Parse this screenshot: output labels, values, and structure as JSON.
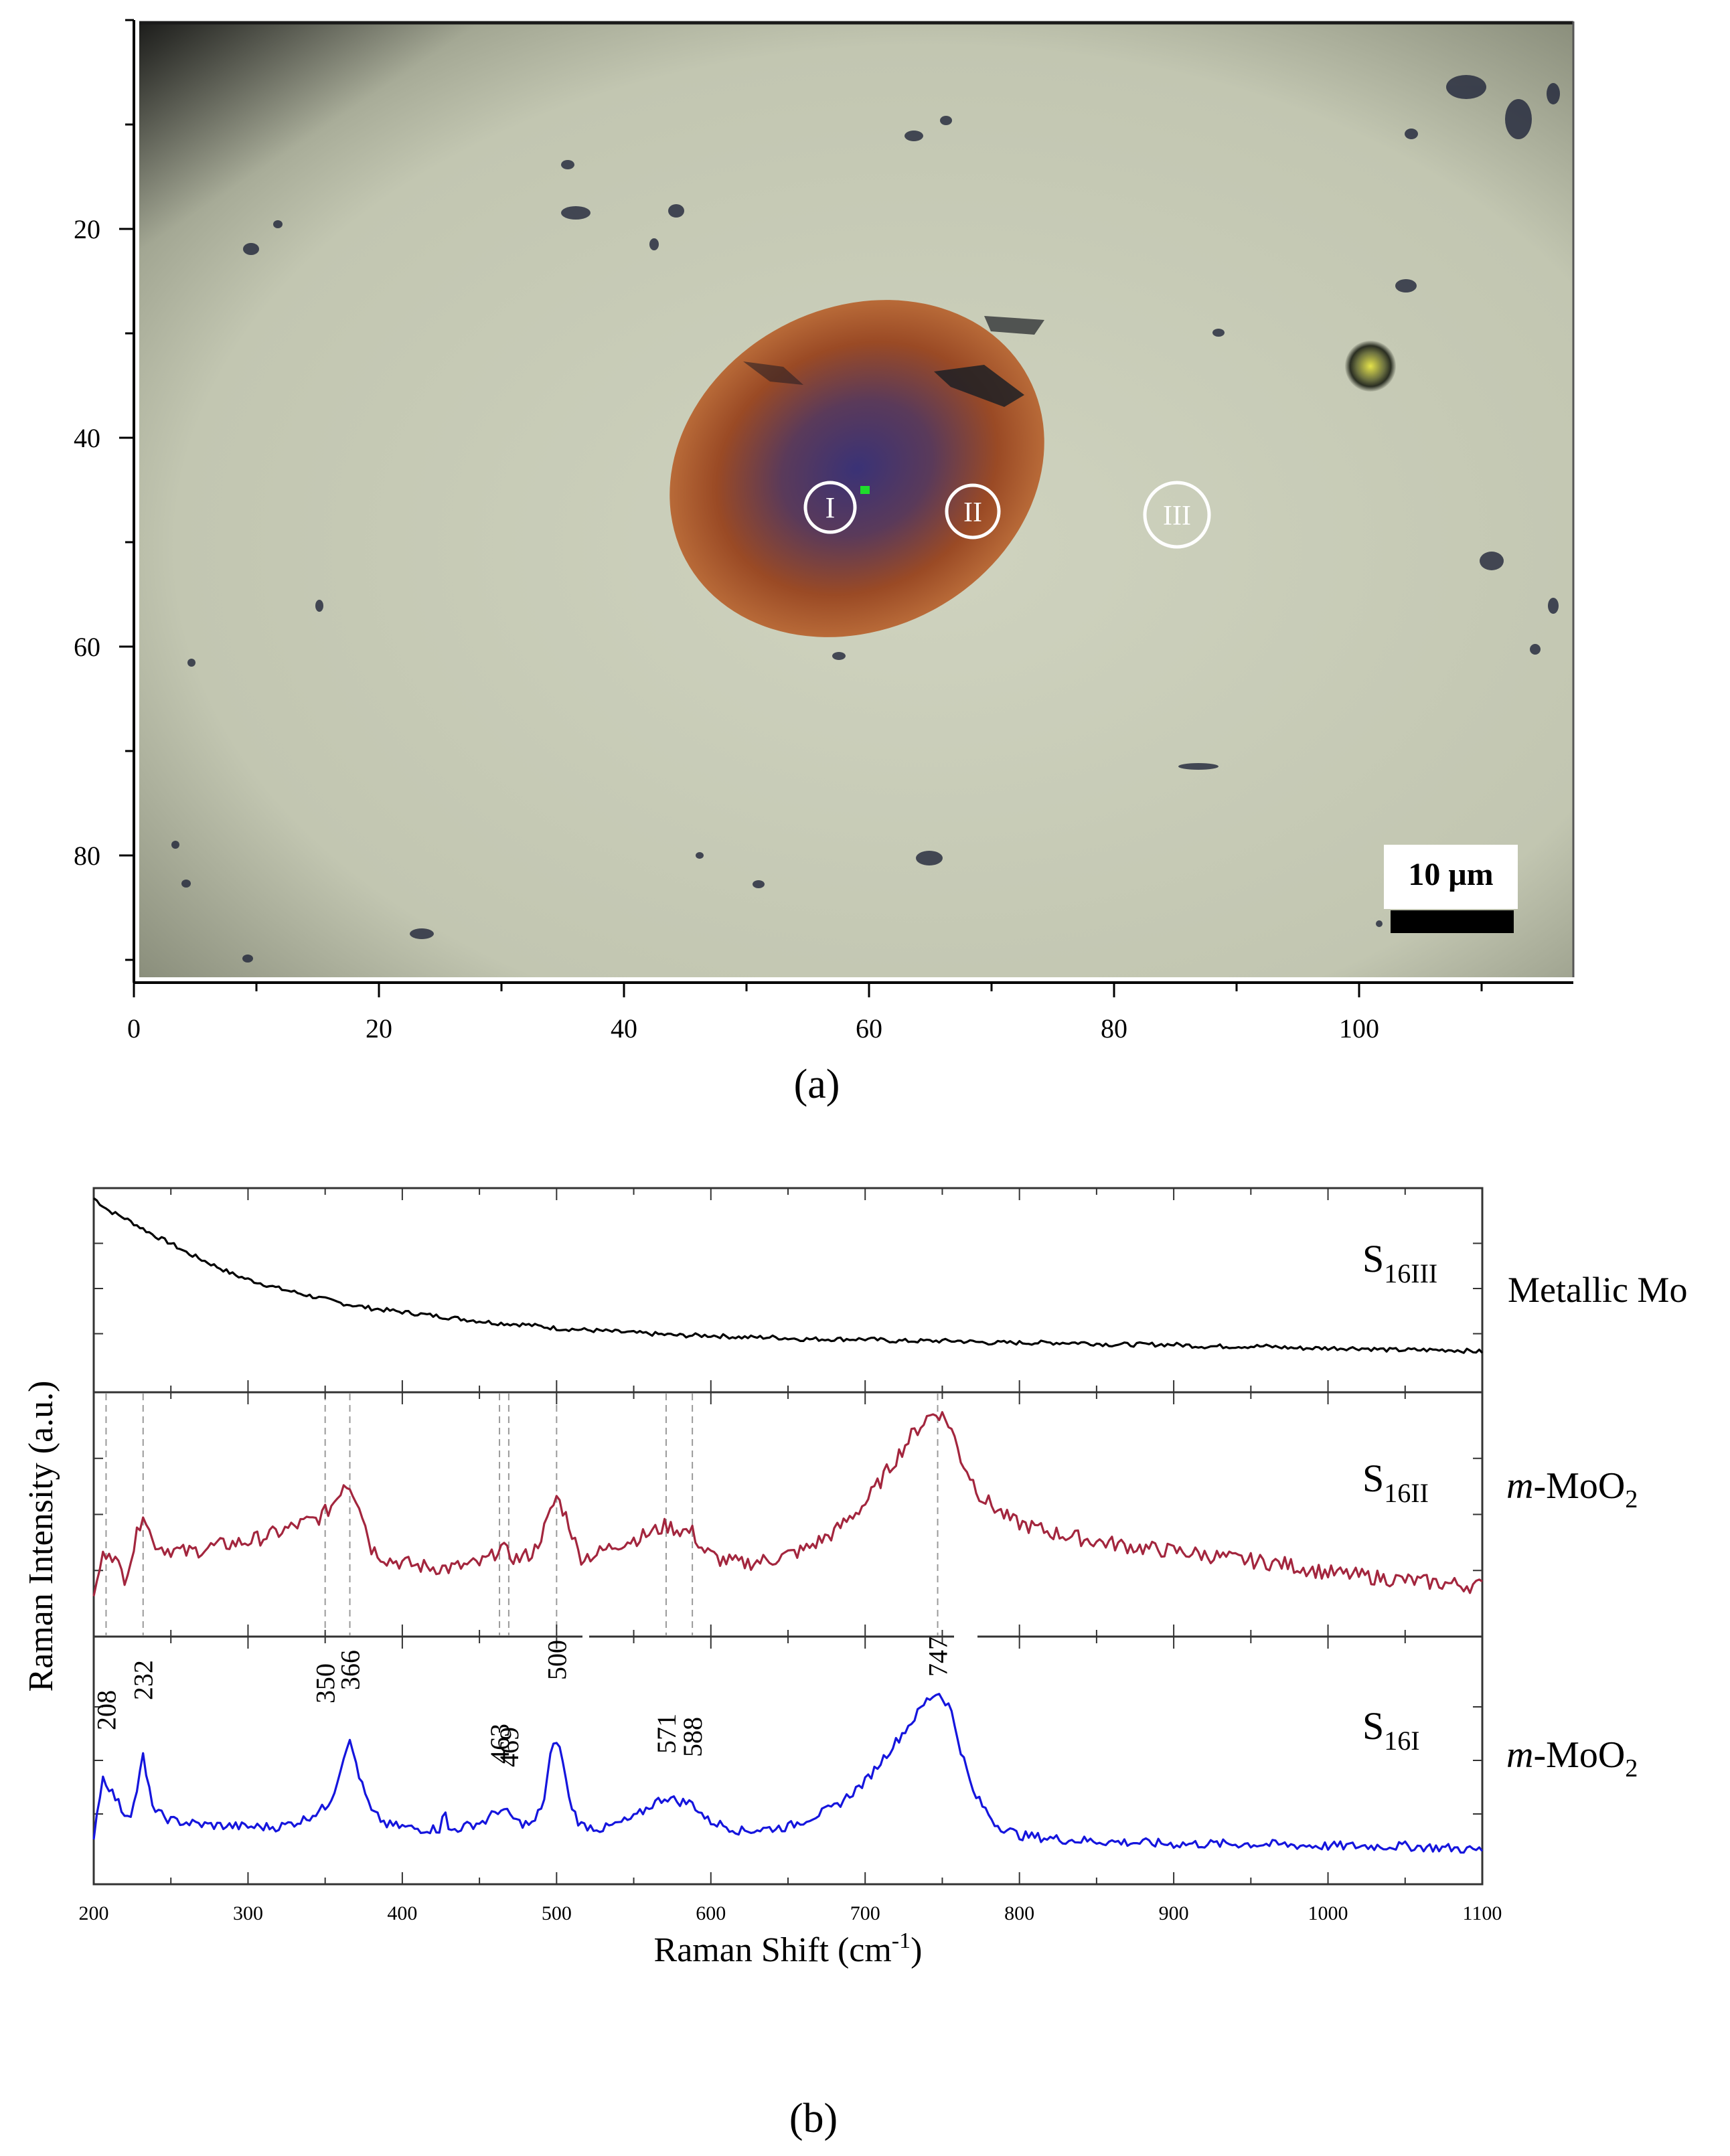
{
  "panel_a": {
    "caption": "(a)",
    "x_ticks": [
      "0",
      "20",
      "40",
      "60",
      "80",
      "100"
    ],
    "y_ticks": [
      "20",
      "40",
      "60",
      "80"
    ],
    "spot_labels": [
      "I",
      "II",
      "III"
    ],
    "scale_bar_label": "10 μm",
    "colors": {
      "background": "#c9cdb9",
      "spot": "#a4521f",
      "spot_center": "#3a3276",
      "scale_bar": "#000000"
    }
  },
  "chart_data": {
    "type": "line",
    "caption": "(b)",
    "xlabel": "Raman Shift (cm",
    "xlabel_sup": "-1",
    "xlabel_end": ")",
    "ylabel": "Raman Intensity  (a.u.)",
    "xlim": [
      200,
      1100
    ],
    "x_ticks": [
      "200",
      "300",
      "400",
      "500",
      "600",
      "700",
      "800",
      "900",
      "1000",
      "1100"
    ],
    "grid": false,
    "series": [
      {
        "name": "S16III",
        "label_main": "S",
        "label_sub": "16III",
        "phase": "Metallic Mo",
        "phase_italic": "",
        "phase_rest": "Metallic Mo",
        "phase_sub": "",
        "color": "#000000",
        "x": [
          200,
          210,
          220,
          230,
          240,
          250,
          260,
          270,
          280,
          290,
          300,
          320,
          340,
          360,
          380,
          400,
          420,
          440,
          460,
          480,
          500,
          520,
          540,
          560,
          580,
          600,
          620,
          640,
          660,
          680,
          700,
          720,
          740,
          760,
          780,
          800,
          820,
          840,
          860,
          880,
          900,
          920,
          940,
          960,
          980,
          1000,
          1020,
          1040,
          1060,
          1080,
          1100
        ],
        "values": [
          1.0,
          0.93,
          0.89,
          0.84,
          0.79,
          0.75,
          0.7,
          0.66,
          0.62,
          0.58,
          0.55,
          0.5,
          0.46,
          0.42,
          0.39,
          0.37,
          0.35,
          0.33,
          0.31,
          0.3,
          0.28,
          0.27,
          0.26,
          0.25,
          0.24,
          0.24,
          0.23,
          0.23,
          0.22,
          0.22,
          0.22,
          0.21,
          0.21,
          0.21,
          0.2,
          0.2,
          0.2,
          0.2,
          0.19,
          0.19,
          0.19,
          0.18,
          0.18,
          0.18,
          0.17,
          0.17,
          0.17,
          0.16,
          0.16,
          0.16,
          0.15
        ]
      },
      {
        "name": "S16II",
        "label_main": "S",
        "label_sub": "16II",
        "phase": "m-MoO2",
        "phase_italic": "m",
        "phase_rest": "-MoO",
        "phase_sub": "2",
        "color": "#a3263e",
        "x": [
          200,
          205,
          210,
          215,
          220,
          226,
          232,
          238,
          245,
          260,
          280,
          300,
          320,
          335,
          345,
          352,
          358,
          362,
          366,
          372,
          380,
          390,
          410,
          430,
          450,
          458,
          463,
          469,
          475,
          485,
          493,
          500,
          507,
          515,
          525,
          540,
          555,
          565,
          571,
          580,
          588,
          595,
          605,
          620,
          640,
          660,
          680,
          700,
          715,
          730,
          740,
          747,
          755,
          762,
          775,
          795,
          820,
          850,
          880,
          910,
          940,
          970,
          1000,
          1030,
          1060,
          1080,
          1100
        ],
        "values": [
          0.12,
          0.3,
          0.35,
          0.28,
          0.22,
          0.35,
          0.52,
          0.38,
          0.35,
          0.33,
          0.36,
          0.38,
          0.42,
          0.46,
          0.48,
          0.52,
          0.58,
          0.64,
          0.63,
          0.55,
          0.35,
          0.3,
          0.27,
          0.26,
          0.28,
          0.31,
          0.36,
          0.32,
          0.3,
          0.33,
          0.45,
          0.58,
          0.48,
          0.31,
          0.32,
          0.37,
          0.4,
          0.43,
          0.45,
          0.43,
          0.42,
          0.34,
          0.3,
          0.28,
          0.3,
          0.34,
          0.42,
          0.55,
          0.7,
          0.85,
          0.93,
          0.96,
          0.9,
          0.75,
          0.58,
          0.47,
          0.42,
          0.38,
          0.35,
          0.33,
          0.3,
          0.28,
          0.24,
          0.22,
          0.2,
          0.19,
          0.18
        ]
      },
      {
        "name": "S16I",
        "label_main": "S",
        "label_sub": "16I",
        "phase": "m-MoO2",
        "phase_italic": "m",
        "phase_rest": "-MoO",
        "phase_sub": "2",
        "color": "#1515dd",
        "x": [
          200,
          203,
          206,
          208,
          212,
          216,
          220,
          225,
          229,
          232,
          235,
          240,
          250,
          270,
          300,
          320,
          335,
          345,
          350,
          355,
          360,
          363,
          366,
          369,
          373,
          380,
          390,
          410,
          425,
          427,
          429,
          440,
          455,
          460,
          463,
          466,
          469,
          475,
          485,
          492,
          496,
          500,
          504,
          508,
          515,
          530,
          550,
          563,
          571,
          578,
          588,
          598,
          620,
          650,
          680,
          700,
          715,
          730,
          740,
          747,
          755,
          762,
          770,
          785,
          800,
          830,
          860,
          900,
          950,
          1000,
          1050,
          1080,
          1100
        ],
        "values": [
          0.15,
          0.3,
          0.42,
          0.4,
          0.35,
          0.3,
          0.25,
          0.26,
          0.4,
          0.52,
          0.38,
          0.26,
          0.22,
          0.2,
          0.19,
          0.19,
          0.22,
          0.26,
          0.28,
          0.34,
          0.46,
          0.56,
          0.58,
          0.52,
          0.4,
          0.26,
          0.2,
          0.18,
          0.18,
          0.32,
          0.17,
          0.19,
          0.22,
          0.26,
          0.27,
          0.26,
          0.25,
          0.21,
          0.2,
          0.32,
          0.52,
          0.6,
          0.5,
          0.32,
          0.2,
          0.18,
          0.23,
          0.3,
          0.33,
          0.31,
          0.3,
          0.22,
          0.17,
          0.19,
          0.28,
          0.4,
          0.54,
          0.68,
          0.78,
          0.82,
          0.75,
          0.55,
          0.35,
          0.2,
          0.15,
          0.13,
          0.12,
          0.11,
          0.11,
          0.1,
          0.1,
          0.09,
          0.08
        ]
      }
    ],
    "peaks": [
      {
        "x": 208,
        "label": "208"
      },
      {
        "x": 232,
        "label": "232"
      },
      {
        "x": 350,
        "label": "350"
      },
      {
        "x": 366,
        "label": "366"
      },
      {
        "x": 463,
        "label": "463"
      },
      {
        "x": 469,
        "label": "469"
      },
      {
        "x": 500,
        "label": "500"
      },
      {
        "x": 571,
        "label": "571"
      },
      {
        "x": 588,
        "label": "588"
      },
      {
        "x": 747,
        "label": "747"
      }
    ]
  }
}
